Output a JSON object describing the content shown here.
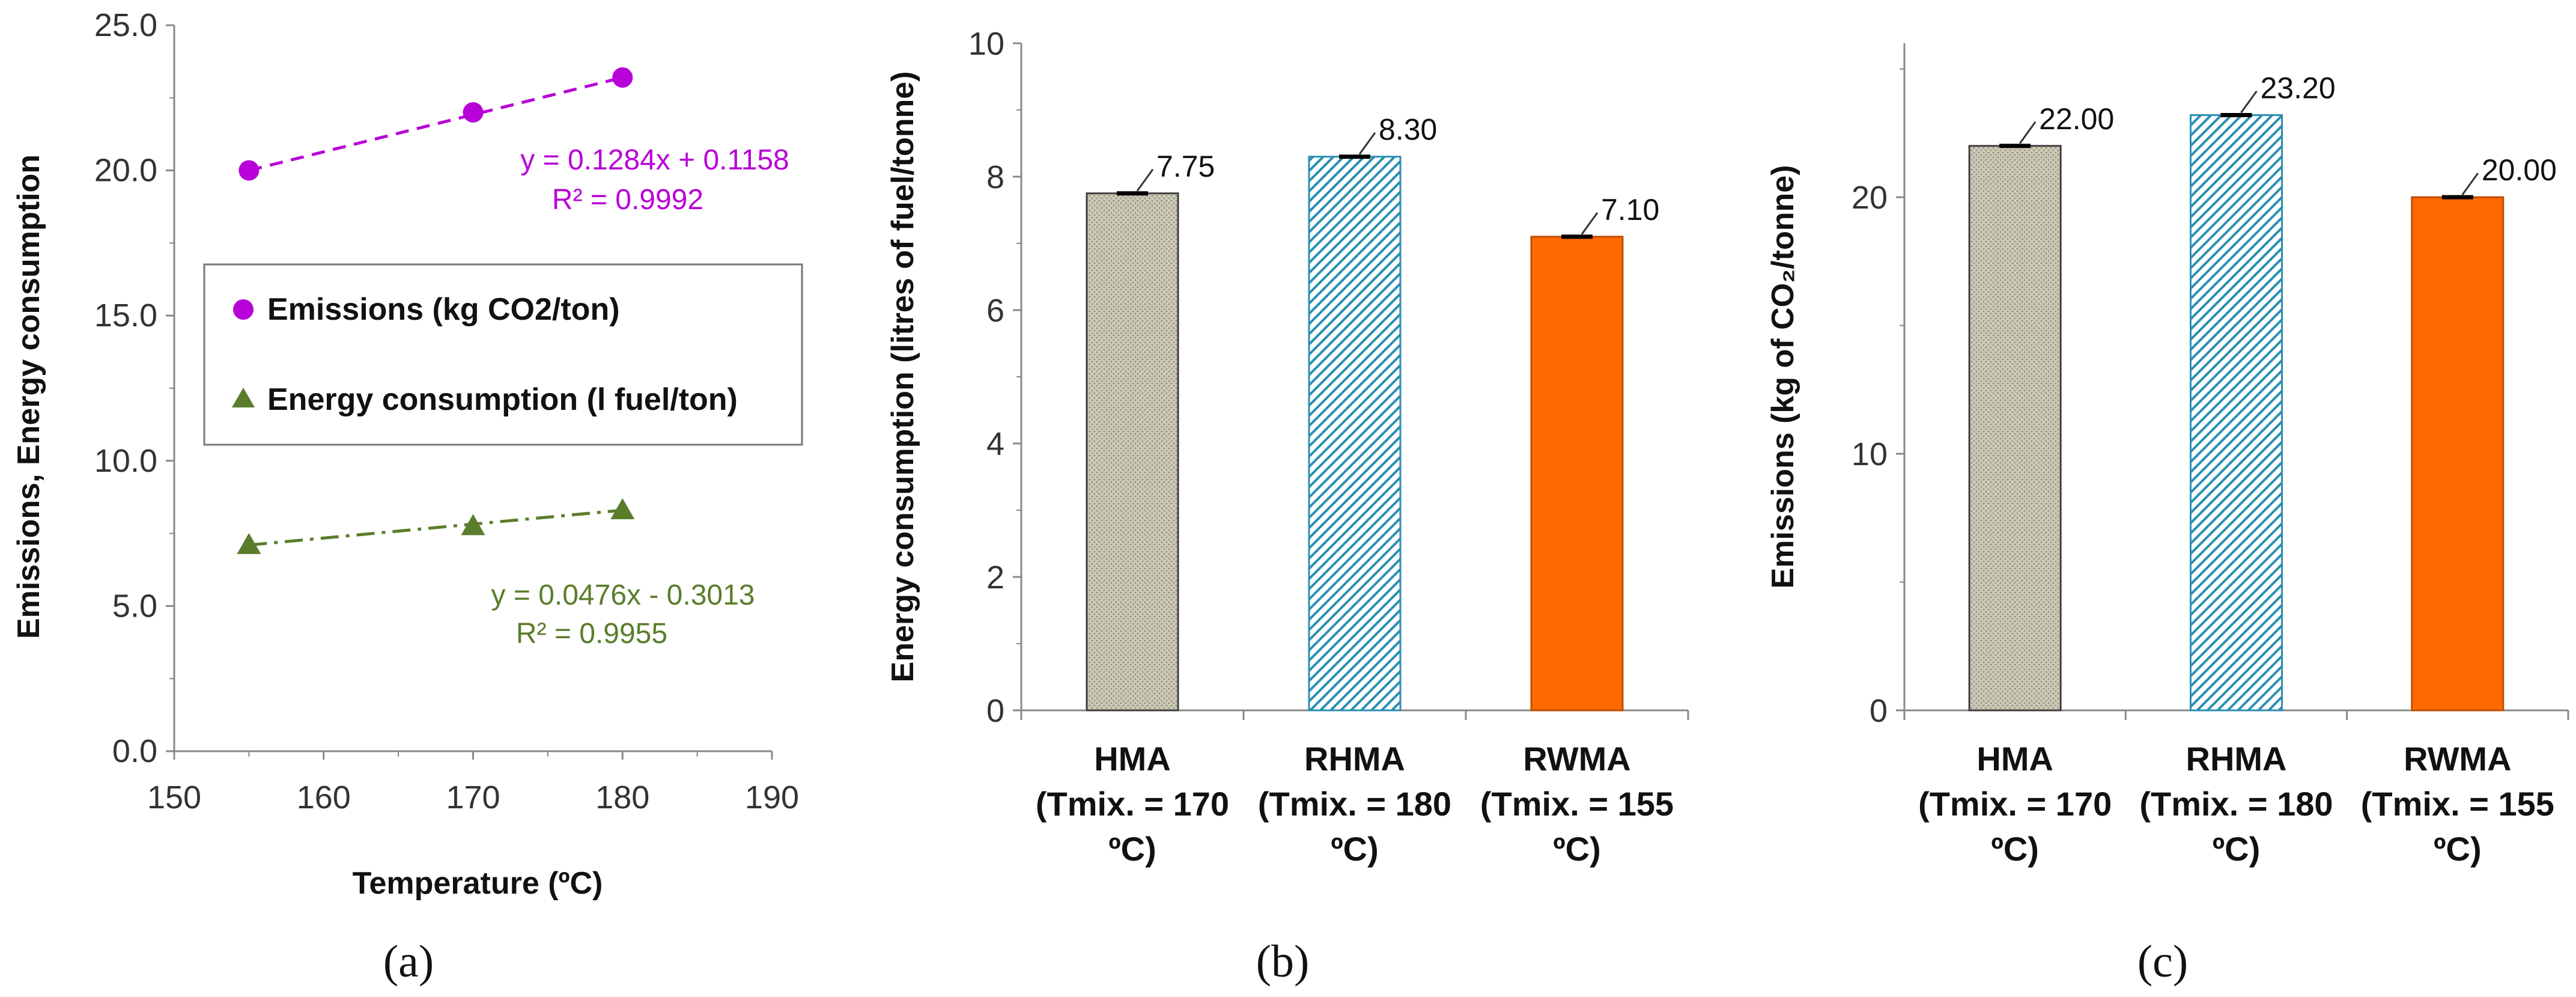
{
  "colors": {
    "emissions": "#b800d8",
    "energy": "#5a7d2b",
    "hma_fill": "#c9c6b2",
    "hma_edge": "#3e3e3e",
    "rhma_fill": "#2b8fb3",
    "rwma_fill": "#ff6a00",
    "axis": "#888888"
  },
  "chart_data": [
    {
      "type": "scatter",
      "panel_label": "(a)",
      "xlabel": "Temperature (ºC)",
      "ylabel": "Emissions,  Energy consumption",
      "xlim": [
        150,
        190
      ],
      "ylim": [
        0,
        25
      ],
      "xticks": [
        "150",
        "160",
        "170",
        "180",
        "190"
      ],
      "yticks": [
        "0.0",
        "5.0",
        "10.0",
        "15.0",
        "20.0",
        "25.0"
      ],
      "series": [
        {
          "name": "Emissions (kg CO2/ton)",
          "marker": "circle",
          "x": [
            155,
            170,
            180
          ],
          "y": [
            20.0,
            22.0,
            23.2
          ],
          "trend_equation": "y = 0.1284x + 0.1158",
          "trend_r2": "R² = 0.9992"
        },
        {
          "name": "Energy consumption (l fuel/ton)",
          "marker": "triangle",
          "x": [
            155,
            170,
            180
          ],
          "y": [
            7.1,
            7.75,
            8.3
          ],
          "trend_equation": "y = 0.0476x - 0.3013",
          "trend_r2": "R² = 0.9955"
        }
      ]
    },
    {
      "type": "bar",
      "panel_label": "(b)",
      "ylabel": "Energy consumption (litres of fuel/tonne)",
      "ylim": [
        0,
        10
      ],
      "yticks": [
        "0",
        "2",
        "4",
        "6",
        "8",
        "10"
      ],
      "categories": [
        [
          "HMA",
          "(Tmix. = 170",
          "ºC)"
        ],
        [
          "RHMA",
          "(Tmix. = 180",
          "ºC)"
        ],
        [
          "RWMA",
          "(Tmix. = 155",
          "ºC)"
        ]
      ],
      "values": [
        7.75,
        8.3,
        7.1
      ],
      "data_labels": [
        "7.75",
        "8.30",
        "7.10"
      ]
    },
    {
      "type": "bar",
      "panel_label": "(c)",
      "ylabel": "Emissions (kg  of CO₂/tonne)",
      "ylim": [
        0,
        26
      ],
      "yticks": [
        "0",
        "10",
        "20"
      ],
      "categories": [
        [
          "HMA",
          "(Tmix. = 170",
          "ºC)"
        ],
        [
          "RHMA",
          "(Tmix. = 180",
          "ºC)"
        ],
        [
          "RWMA",
          "(Tmix. = 155",
          "ºC)"
        ]
      ],
      "values": [
        22.0,
        23.2,
        20.0
      ],
      "data_labels": [
        "22.00",
        "23.20",
        "20.00"
      ]
    }
  ]
}
